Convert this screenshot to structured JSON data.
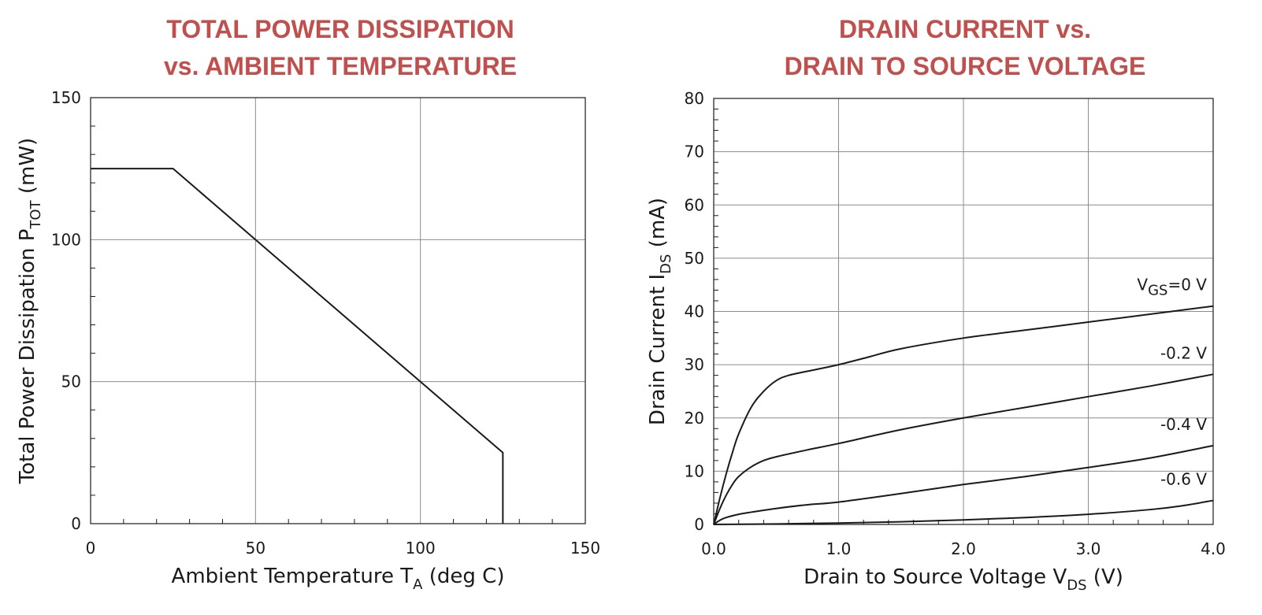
{
  "chart_data": [
    {
      "type": "line",
      "title": [
        "TOTAL POWER DISSIPATION",
        "vs. AMBIENT TEMPERATURE"
      ],
      "xlabel": {
        "main": "Ambient Temperature T",
        "sub": "A",
        "after": " (deg C)"
      },
      "ylabel": {
        "main": "Total Power Dissipation P",
        "sub": "TOT",
        "after": " (mW)"
      },
      "xlim": [
        0,
        150
      ],
      "ylim": [
        0,
        150
      ],
      "xticks": [
        0,
        50,
        100,
        150
      ],
      "yticks": [
        0,
        50,
        100,
        150
      ],
      "xtick_labels": [
        "0",
        "50",
        "100",
        "150"
      ],
      "ytick_labels": [
        "0",
        "50",
        "100",
        "150"
      ],
      "grid": true,
      "series": [
        {
          "x": [
            0,
            25,
            125,
            125
          ],
          "y": [
            125,
            125,
            25,
            0
          ]
        }
      ]
    },
    {
      "type": "line",
      "title": [
        "DRAIN CURRENT vs.",
        "DRAIN TO SOURCE VOLTAGE"
      ],
      "xlabel": {
        "main": "Drain to Source Voltage V",
        "sub": "DS",
        "after": " (V)"
      },
      "ylabel": {
        "main": "Drain Current I",
        "sub": "DS",
        "after": " (mA)"
      },
      "xlim": [
        0,
        4
      ],
      "ylim": [
        0,
        80
      ],
      "xticks": [
        0,
        1,
        2,
        3,
        4
      ],
      "yticks": [
        0,
        10,
        20,
        30,
        40,
        50,
        60,
        70,
        80
      ],
      "xtick_labels": [
        "0.0",
        "1.0",
        "2.0",
        "3.0",
        "4.0"
      ],
      "ytick_labels": [
        "0",
        "10",
        "20",
        "30",
        "40",
        "50",
        "60",
        "70",
        "80"
      ],
      "grid": true,
      "series": [
        {
          "name": "VGS=0 V",
          "label": {
            "main": "V",
            "sub": "GS",
            "after": "=0 V"
          },
          "x": [
            0,
            0.05,
            0.1,
            0.15,
            0.2,
            0.3,
            0.4,
            0.5,
            0.6,
            0.8,
            1.0,
            1.25,
            1.5,
            2.0,
            2.5,
            3.0,
            3.5,
            4.0
          ],
          "y": [
            0,
            5,
            9.5,
            13.5,
            17,
            22,
            25,
            27,
            28,
            29,
            30,
            31.5,
            33,
            35,
            36.5,
            38,
            39.5,
            41
          ]
        },
        {
          "name": "-0.2 V",
          "x": [
            0,
            0.05,
            0.1,
            0.15,
            0.2,
            0.3,
            0.4,
            0.5,
            0.75,
            1.0,
            1.5,
            2.0,
            2.5,
            3.0,
            3.5,
            4.0
          ],
          "y": [
            0,
            3,
            5.5,
            7.5,
            9,
            10.8,
            12,
            12.7,
            14,
            15.2,
            17.8,
            20,
            22,
            24,
            26,
            28.2
          ]
        },
        {
          "name": "-0.4 V",
          "x": [
            0,
            0.05,
            0.1,
            0.2,
            0.3,
            0.5,
            0.75,
            1.0,
            1.5,
            2.0,
            2.5,
            3.0,
            3.5,
            4.0
          ],
          "y": [
            0,
            0.8,
            1.3,
            1.9,
            2.3,
            3,
            3.7,
            4.2,
            5.8,
            7.5,
            9,
            10.7,
            12.5,
            14.8
          ]
        },
        {
          "name": "-0.6 V",
          "x": [
            0,
            0.5,
            1.0,
            1.5,
            2.0,
            2.5,
            3.0,
            3.5,
            3.75,
            4.0
          ],
          "y": [
            0,
            0.1,
            0.25,
            0.5,
            0.85,
            1.3,
            1.9,
            2.8,
            3.5,
            4.5
          ]
        }
      ]
    }
  ]
}
